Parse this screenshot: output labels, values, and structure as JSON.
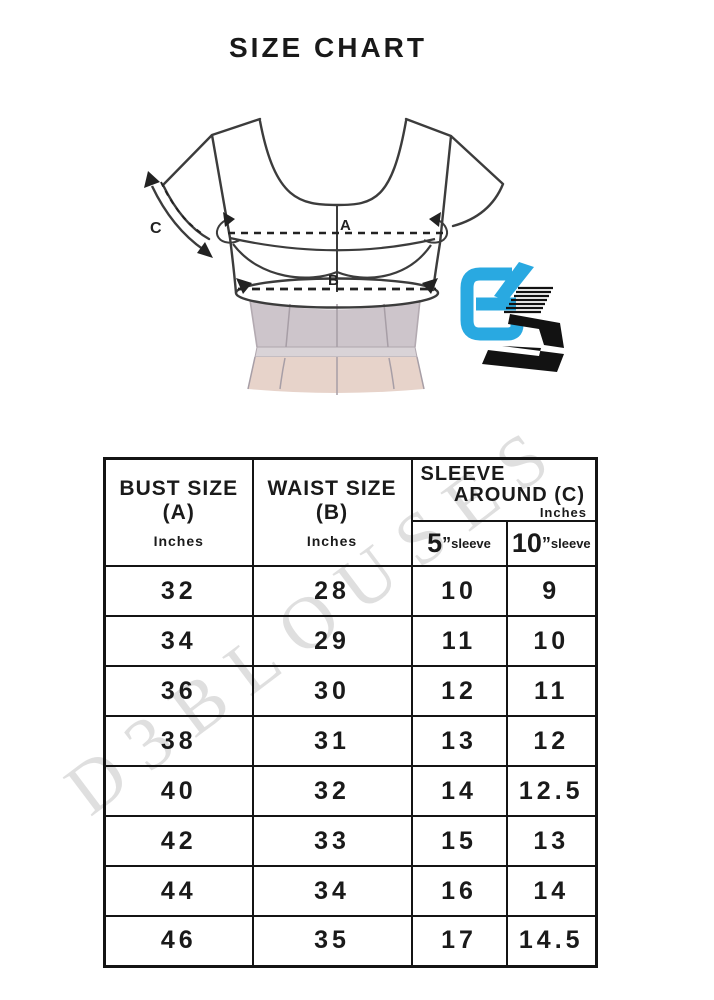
{
  "page": {
    "title": "SIZE CHART",
    "background": "#ffffff"
  },
  "watermark": {
    "text": "D3BLOUSES",
    "color": "#c6c6c6"
  },
  "diagram": {
    "labels": {
      "a": "A",
      "b": "B",
      "c": "C"
    },
    "colors": {
      "outline": "#3c3c3c",
      "lower_fill": "#cdc5cb",
      "band_fill": "#d9d3d7",
      "hip_fill": "#e7d3ca",
      "seam": "#a79ea6"
    }
  },
  "logo": {
    "name": "D3",
    "blue": "#29a9e1",
    "black": "#121212"
  },
  "table": {
    "headers": {
      "bust": {
        "line1": "BUST SIZE",
        "line2": "(A)",
        "unit": "Inches"
      },
      "waist": {
        "line1": "WAIST SIZE",
        "line2": "(B)",
        "unit": "Inches"
      },
      "sleeve": {
        "line1": "SLEEVE",
        "line2": "AROUND (C)",
        "unit": "Inches",
        "sub": [
          {
            "num": "5",
            "mark": "”",
            "word": "sleeve"
          },
          {
            "num": "10",
            "mark": "”",
            "word": "sleeve"
          }
        ]
      }
    }
  },
  "chart_data": {
    "type": "table",
    "title": "SIZE CHART",
    "columns": [
      "BUST SIZE (A) Inches",
      "WAIST SIZE (B) Inches",
      "SLEEVE AROUND (C) Inches — 5\" sleeve",
      "SLEEVE AROUND (C) Inches — 10\" sleeve"
    ],
    "rows": [
      [
        "32",
        "28",
        "10",
        "9"
      ],
      [
        "34",
        "29",
        "11",
        "10"
      ],
      [
        "36",
        "30",
        "12",
        "11"
      ],
      [
        "38",
        "31",
        "13",
        "12"
      ],
      [
        "40",
        "32",
        "14",
        "12.5"
      ],
      [
        "42",
        "33",
        "15",
        "13"
      ],
      [
        "44",
        "34",
        "16",
        "14"
      ],
      [
        "46",
        "35",
        "17",
        "14.5"
      ]
    ]
  }
}
